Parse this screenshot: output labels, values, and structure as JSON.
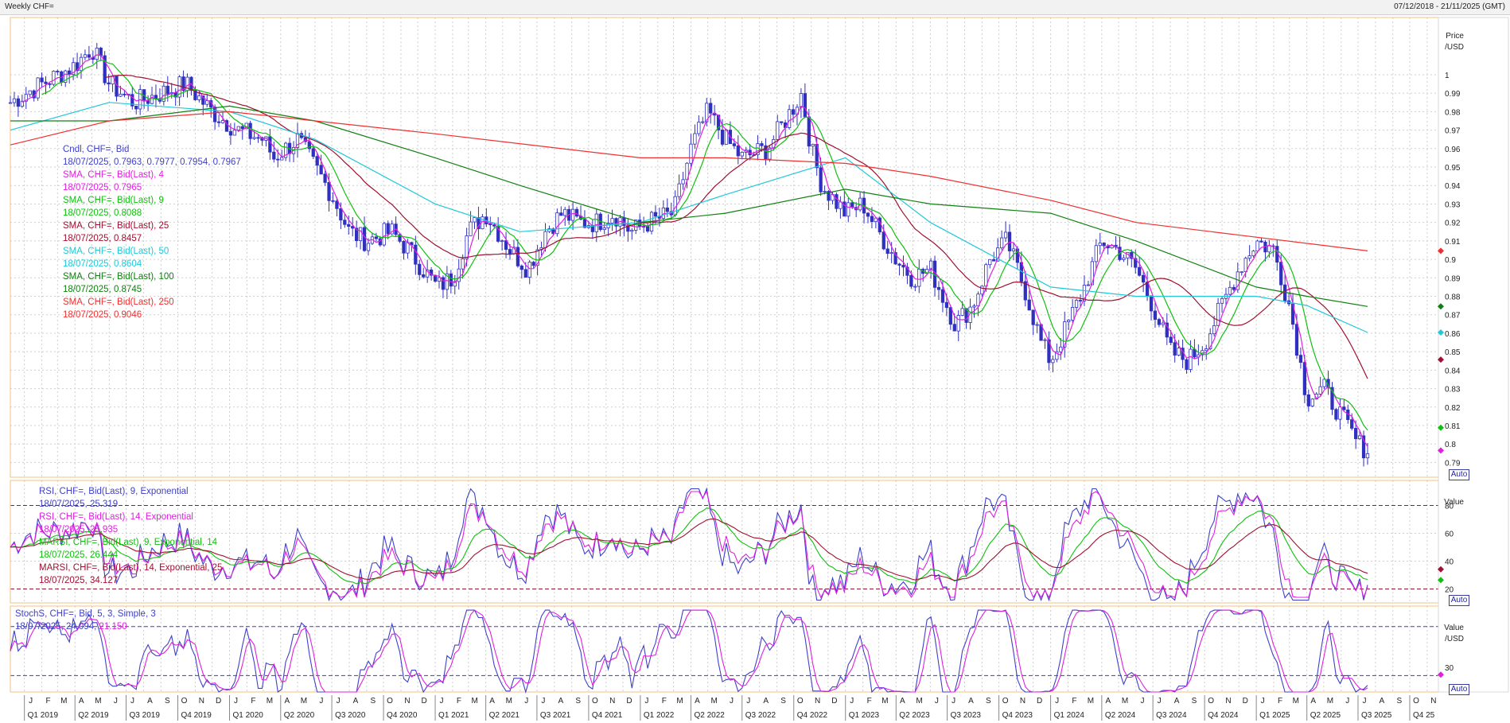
{
  "window": {
    "title": "Weekly CHF=",
    "date_range": "07/12/2018 - 21/11/2025 (GMT)"
  },
  "price_panel": {
    "axis_title": "Price",
    "axis_unit": "/USD",
    "auto_label": "Auto",
    "legend": [
      {
        "text": "Cndl, CHF=, Bid",
        "color": "#4040c8"
      },
      {
        "text": "18/07/2025, 0.7963, 0.7977, 0.7954, 0.7967",
        "color": "#4040c8"
      },
      {
        "text": "SMA, CHF=, Bid(Last),  4",
        "color": "#e020e0"
      },
      {
        "text": "18/07/2025, 0.7965",
        "color": "#e020e0"
      },
      {
        "text": "SMA, CHF=, Bid(Last),  9",
        "color": "#10c010"
      },
      {
        "text": "18/07/2025, 0.8088",
        "color": "#10c010"
      },
      {
        "text": "SMA, CHF=, Bid(Last),  25",
        "color": "#a01030"
      },
      {
        "text": "18/07/2025, 0.8457",
        "color": "#a01030"
      },
      {
        "text": "SMA, CHF=, Bid(Last),  50",
        "color": "#20c8d8"
      },
      {
        "text": "18/07/2025, 0.8604",
        "color": "#20c8d8"
      },
      {
        "text": "SMA, CHF=, Bid(Last),  100",
        "color": "#108010"
      },
      {
        "text": "18/07/2025, 0.8745",
        "color": "#108010"
      },
      {
        "text": "SMA, CHF=, Bid(Last),  250",
        "color": "#f03030"
      },
      {
        "text": "18/07/2025, 0.9046",
        "color": "#f03030"
      }
    ],
    "markers": [
      {
        "value": 0.9046,
        "color": "#f03030"
      },
      {
        "value": 0.8745,
        "color": "#108010"
      },
      {
        "value": 0.8604,
        "color": "#20c8d8"
      },
      {
        "value": 0.8457,
        "color": "#a01030"
      },
      {
        "value": 0.8088,
        "color": "#10c010"
      },
      {
        "value": 0.7965,
        "color": "#e020e0"
      }
    ]
  },
  "rsi_panel": {
    "axis_title": "Value",
    "auto_label": "Auto",
    "legend": [
      {
        "text": "RSI, CHF=, Bid(Last),  9, Exponential",
        "color": "#4040c8"
      },
      {
        "text": "18/07/2025, 25.319",
        "color": "#4040c8"
      },
      {
        "text": "RSI, CHF=, Bid(Last),  14, Exponential",
        "color": "#e020e0"
      },
      {
        "text": "18/07/2025, 25.935",
        "color": "#e020e0"
      },
      {
        "text": "MARSI, CHF=, Bid(Last),  9, Exponential, 14",
        "color": "#10c010"
      },
      {
        "text": "18/07/2025, 26.444",
        "color": "#10c010"
      },
      {
        "text": "MARSI, CHF=, Bid(Last),  14, Exponential, 25",
        "color": "#a01030"
      },
      {
        "text": "18/07/2025, 34.127",
        "color": "#a01030"
      }
    ]
  },
  "stoch_panel": {
    "axis_title": "Value",
    "axis_unit": "/USD",
    "auto_label": "Auto",
    "legend": [
      {
        "text": "StochS, CHF=, Bid,  5, 3, Simple, 3",
        "color": "#4040c8"
      },
      {
        "text": "18/07/2025, 24.094, ",
        "color": "#4040c8"
      },
      {
        "text": "21.150",
        "color": "#e020e0"
      }
    ]
  },
  "chart_data": {
    "type": "line",
    "title": "Weekly CHF=",
    "x_range": [
      "2018-12-07",
      "2025-11-21"
    ],
    "x_month_labels": [
      "J",
      "F",
      "M",
      "A",
      "M",
      "J",
      "J",
      "A",
      "S",
      "O",
      "N",
      "D",
      "J",
      "F",
      "M",
      "A",
      "M",
      "J",
      "J",
      "A",
      "S",
      "O",
      "N",
      "D",
      "J",
      "F",
      "M",
      "A",
      "M",
      "J",
      "J",
      "A",
      "S",
      "O",
      "N",
      "D",
      "J",
      "F",
      "M",
      "A",
      "M",
      "J",
      "J",
      "A",
      "S",
      "O",
      "N",
      "D",
      "J",
      "F",
      "M",
      "A",
      "M",
      "J",
      "J",
      "A",
      "S",
      "O",
      "N",
      "D",
      "J",
      "F",
      "M",
      "A",
      "M",
      "J",
      "J",
      "A",
      "S",
      "O",
      "N",
      "D",
      "J",
      "F",
      "M",
      "A",
      "M",
      "J",
      "J",
      "A",
      "S",
      "O",
      "N"
    ],
    "x_quarter_labels": [
      "Q1 2019",
      "Q2 2019",
      "Q3 2019",
      "Q4 2019",
      "Q1 2020",
      "Q2 2020",
      "Q3 2020",
      "Q4 2020",
      "Q1 2021",
      "Q2 2021",
      "Q3 2021",
      "Q4 2021",
      "Q1 2022",
      "Q2 2022",
      "Q3 2022",
      "Q4 2022",
      "Q1 2023",
      "Q2 2023",
      "Q3 2023",
      "Q4 2023",
      "Q1 2024",
      "Q2 2024",
      "Q3 2024",
      "Q4 2024",
      "Q1 2025",
      "Q2 2025",
      "Q3 2025",
      "Q4 25"
    ],
    "price": {
      "y_ticks": [
        1,
        0.99,
        0.98,
        0.97,
        0.96,
        0.95,
        0.94,
        0.93,
        0.92,
        0.91,
        0.9,
        0.89,
        0.88,
        0.87,
        0.86,
        0.85,
        0.84,
        0.83,
        0.82,
        0.81,
        0.8,
        0.79
      ],
      "ylim": [
        0.782,
        1.031
      ],
      "close_series": {
        "name": "Cndl, CHF=, Bid",
        "x": [
          "2018-12-07",
          "2019-02-01",
          "2019-04-01",
          "2019-05-01",
          "2019-06-01",
          "2019-07-15",
          "2019-09-01",
          "2019-10-15",
          "2019-12-01",
          "2020-01-15",
          "2020-03-01",
          "2020-03-20",
          "2020-05-01",
          "2020-06-01",
          "2020-07-01",
          "2020-08-01",
          "2020-09-01",
          "2020-10-15",
          "2020-11-15",
          "2021-01-04",
          "2021-02-01",
          "2021-03-01",
          "2021-04-01",
          "2021-05-15",
          "2021-06-15",
          "2021-07-15",
          "2021-08-15",
          "2021-09-15",
          "2021-10-15",
          "2021-11-15",
          "2021-12-15",
          "2022-01-15",
          "2022-03-01",
          "2022-04-01",
          "2022-05-01",
          "2022-06-01",
          "2022-07-01",
          "2022-08-15",
          "2022-09-15",
          "2022-10-15",
          "2022-11-01",
          "2022-11-20",
          "2023-01-01",
          "2023-02-01",
          "2023-03-01",
          "2023-04-01",
          "2023-05-01",
          "2023-06-01",
          "2023-07-15",
          "2023-08-15",
          "2023-09-15",
          "2023-10-15",
          "2023-11-15",
          "2023-12-15",
          "2024-01-01",
          "2024-02-01",
          "2024-03-01",
          "2024-04-01",
          "2024-05-01",
          "2024-06-01",
          "2024-07-01",
          "2024-08-01",
          "2024-09-01",
          "2024-10-01",
          "2024-11-01",
          "2024-12-01",
          "2025-01-01",
          "2025-02-01",
          "2025-03-01",
          "2025-04-01",
          "2025-05-01",
          "2025-06-01",
          "2025-07-01",
          "2025-07-18"
        ],
        "values": [
          0.985,
          0.995,
          1.005,
          1.015,
          0.995,
          0.985,
          0.99,
          0.995,
          0.98,
          0.97,
          0.965,
          0.955,
          0.965,
          0.95,
          0.935,
          0.915,
          0.91,
          0.915,
          0.905,
          0.885,
          0.89,
          0.915,
          0.925,
          0.905,
          0.895,
          0.915,
          0.925,
          0.92,
          0.92,
          0.925,
          0.915,
          0.92,
          0.925,
          0.96,
          0.98,
          0.965,
          0.955,
          0.96,
          0.975,
          0.99,
          0.96,
          0.94,
          0.925,
          0.93,
          0.915,
          0.9,
          0.89,
          0.895,
          0.865,
          0.875,
          0.9,
          0.91,
          0.885,
          0.855,
          0.845,
          0.865,
          0.885,
          0.91,
          0.905,
          0.895,
          0.875,
          0.85,
          0.845,
          0.855,
          0.875,
          0.895,
          0.91,
          0.905,
          0.875,
          0.825,
          0.83,
          0.815,
          0.8,
          0.797
        ]
      },
      "sma_4": {
        "name": "SMA, CHF=, Bid(Last),  4",
        "last": 0.7965
      },
      "sma_9": {
        "name": "SMA, CHF=, Bid(Last),  9",
        "last": 0.8088
      },
      "sma_25": {
        "name": "SMA, CHF=, Bid(Last),  25",
        "last": 0.8457
      },
      "sma_50": {
        "name": "SMA, CHF=, Bid(Last),  50",
        "x": [
          "2018-12-07",
          "2019-06-01",
          "2020-01-01",
          "2020-06-01",
          "2021-01-01",
          "2021-06-01",
          "2022-01-01",
          "2022-06-01",
          "2023-01-01",
          "2023-06-01",
          "2024-01-01",
          "2024-06-01",
          "2025-01-01",
          "2025-04-01",
          "2025-07-18"
        ],
        "values": [
          0.97,
          0.985,
          0.98,
          0.965,
          0.93,
          0.915,
          0.92,
          0.935,
          0.955,
          0.92,
          0.885,
          0.88,
          0.88,
          0.875,
          0.8604
        ]
      },
      "sma_100": {
        "name": "SMA, CHF=, Bid(Last),  100",
        "x": [
          "2018-12-07",
          "2019-06-01",
          "2020-01-01",
          "2020-06-01",
          "2021-01-01",
          "2021-06-01",
          "2022-01-01",
          "2022-06-01",
          "2023-01-01",
          "2023-06-01",
          "2024-01-01",
          "2024-06-01",
          "2025-01-01",
          "2025-04-01",
          "2025-07-18"
        ],
        "values": [
          0.975,
          0.975,
          0.983,
          0.975,
          0.955,
          0.94,
          0.92,
          0.925,
          0.938,
          0.93,
          0.925,
          0.91,
          0.885,
          0.88,
          0.8745
        ]
      },
      "sma_250": {
        "name": "SMA, CHF=, Bid(Last),  250",
        "x": [
          "2018-12-07",
          "2019-06-01",
          "2020-01-01",
          "2021-01-01",
          "2022-01-01",
          "2022-06-01",
          "2023-01-01",
          "2023-06-01",
          "2024-01-01",
          "2024-06-01",
          "2025-01-01",
          "2025-07-18"
        ],
        "values": [
          0.962,
          0.975,
          0.98,
          0.968,
          0.955,
          0.955,
          0.952,
          0.945,
          0.932,
          0.92,
          0.912,
          0.9046
        ]
      }
    },
    "rsi": {
      "y_ticks": [
        80,
        60,
        40,
        20
      ],
      "ylim": [
        10,
        98
      ],
      "rsi_9": {
        "name": "RSI, CHF=, Bid(Last),  9, Exponential",
        "last": 25.319
      },
      "rsi_14": {
        "name": "RSI, CHF=, Bid(Last),  14, Exponential",
        "last": 25.935
      },
      "marsi_9": {
        "name": "MARSI, CHF=, Bid(Last),  9, Exponential, 14",
        "last": 26.444
      },
      "marsi_14": {
        "name": "MARSI, CHF=, Bid(Last),  14, Exponential, 25",
        "last": 34.127
      }
    },
    "stoch": {
      "y_ticks": [
        30
      ],
      "ylim": [
        0,
        105
      ],
      "k": {
        "name": "StochS, CHF=, Bid,  5, 3, Simple, 3",
        "last": 24.094
      },
      "d": {
        "last": 21.15
      }
    }
  }
}
